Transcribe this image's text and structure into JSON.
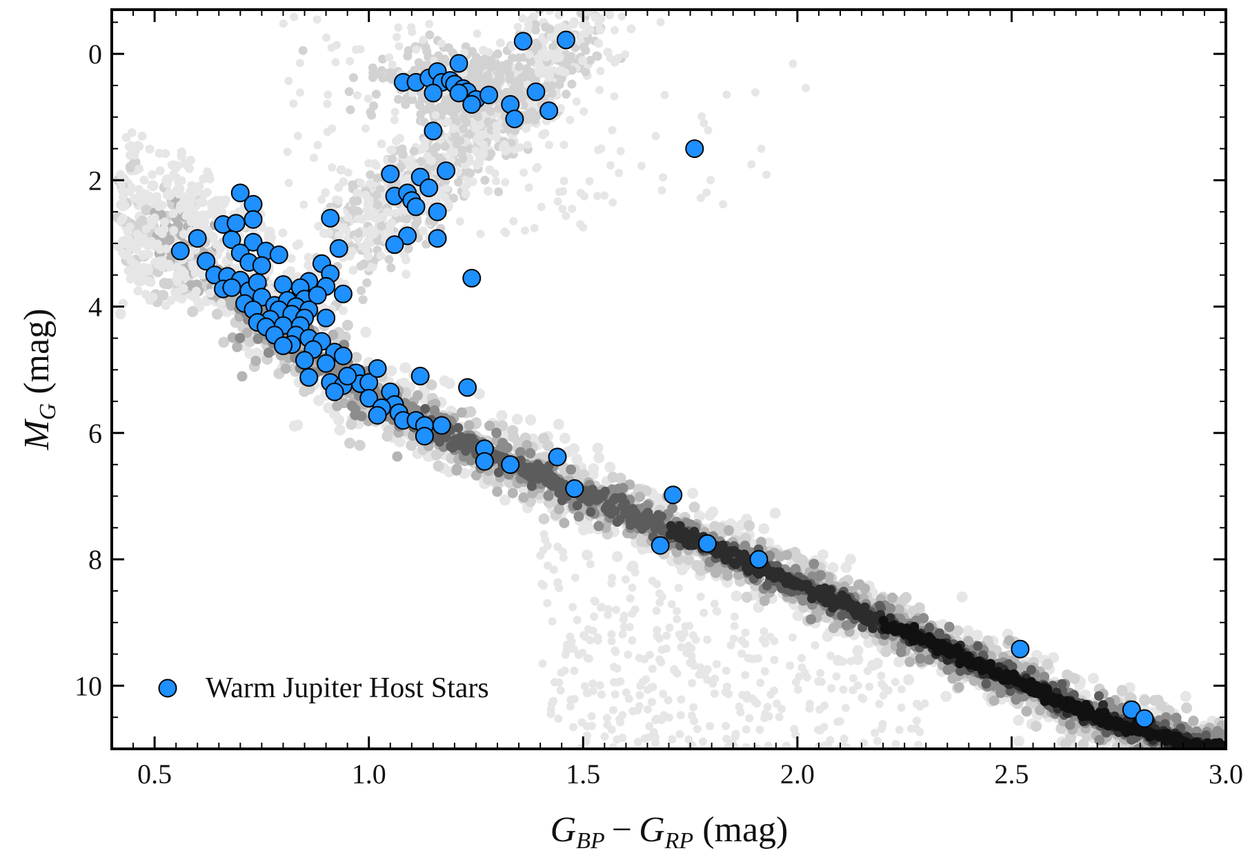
{
  "chart_data": {
    "type": "scatter",
    "xlabel": {
      "main": "G",
      "sub1": "BP",
      "minus": "−",
      "main2": "G",
      "sub2": "RP",
      "unit": " (mag)"
    },
    "ylabel": {
      "main": "M",
      "sub": "G",
      "unit": " (mag)"
    },
    "xlim": [
      0.4,
      3.0
    ],
    "ylim": [
      11.0,
      -0.7
    ],
    "x_ticks": [
      {
        "value": 0.5,
        "label": "0.5"
      },
      {
        "value": 1.0,
        "label": "1.0"
      },
      {
        "value": 1.5,
        "label": "1.5"
      },
      {
        "value": 2.0,
        "label": "2.0"
      },
      {
        "value": 2.5,
        "label": "2.5"
      },
      {
        "value": 3.0,
        "label": "3.0"
      }
    ],
    "y_ticks": [
      {
        "value": 0,
        "label": "0"
      },
      {
        "value": 2,
        "label": "2"
      },
      {
        "value": 4,
        "label": "4"
      },
      {
        "value": 6,
        "label": "6"
      },
      {
        "value": 8,
        "label": "8"
      },
      {
        "value": 10,
        "label": "10"
      }
    ],
    "background_population": {
      "description": "field stars density",
      "main_sequence_ridge": [
        [
          0.45,
          2.6
        ],
        [
          0.6,
          3.3
        ],
        [
          0.8,
          4.4
        ],
        [
          1.0,
          5.4
        ],
        [
          1.2,
          6.1
        ],
        [
          1.5,
          7.0
        ],
        [
          1.8,
          7.8
        ],
        [
          2.1,
          8.7
        ],
        [
          2.4,
          9.6
        ],
        [
          2.7,
          10.5
        ],
        [
          2.95,
          11.0
        ]
      ],
      "red_giant_clump": [
        [
          1.0,
          2.6
        ],
        [
          1.1,
          1.8
        ],
        [
          1.2,
          0.8
        ],
        [
          1.3,
          0.1
        ],
        [
          1.4,
          -0.4
        ]
      ],
      "colors": [
        "#e6e6e6",
        "#d2d2d2",
        "#b4b4b4",
        "#8c8c8c",
        "#5c5c5c",
        "#2c2c2c",
        "#111111"
      ]
    },
    "series": [
      {
        "name": "Warm Jupiter Host Stars",
        "color": "#1e90ff",
        "edge_color": "#000000",
        "points": [
          [
            1.36,
            -0.2
          ],
          [
            1.46,
            -0.22
          ],
          [
            1.21,
            0.15
          ],
          [
            1.08,
            0.45
          ],
          [
            1.11,
            0.45
          ],
          [
            1.14,
            0.38
          ],
          [
            1.16,
            0.28
          ],
          [
            1.17,
            0.45
          ],
          [
            1.19,
            0.42
          ],
          [
            1.2,
            0.48
          ],
          [
            1.22,
            0.55
          ],
          [
            1.23,
            0.6
          ],
          [
            1.15,
            0.62
          ],
          [
            1.21,
            0.62
          ],
          [
            1.25,
            0.72
          ],
          [
            1.24,
            0.8
          ],
          [
            1.28,
            0.65
          ],
          [
            1.33,
            0.8
          ],
          [
            1.34,
            1.03
          ],
          [
            1.39,
            0.6
          ],
          [
            1.42,
            0.9
          ],
          [
            1.15,
            1.22
          ],
          [
            1.76,
            1.5
          ],
          [
            1.05,
            1.9
          ],
          [
            1.12,
            1.95
          ],
          [
            1.18,
            1.85
          ],
          [
            1.14,
            2.12
          ],
          [
            1.06,
            2.25
          ],
          [
            1.09,
            2.2
          ],
          [
            1.1,
            2.32
          ],
          [
            1.11,
            2.42
          ],
          [
            1.16,
            2.5
          ],
          [
            1.09,
            2.88
          ],
          [
            1.16,
            2.92
          ],
          [
            1.06,
            3.02
          ],
          [
            1.24,
            3.55
          ],
          [
            0.7,
            2.2
          ],
          [
            0.73,
            2.38
          ],
          [
            0.73,
            2.62
          ],
          [
            0.66,
            2.7
          ],
          [
            0.69,
            2.68
          ],
          [
            0.6,
            2.92
          ],
          [
            0.68,
            2.94
          ],
          [
            0.73,
            2.98
          ],
          [
            0.56,
            3.12
          ],
          [
            0.91,
            2.6
          ],
          [
            0.93,
            3.08
          ],
          [
            0.7,
            3.15
          ],
          [
            0.76,
            3.12
          ],
          [
            0.79,
            3.18
          ],
          [
            0.62,
            3.28
          ],
          [
            0.72,
            3.3
          ],
          [
            0.75,
            3.35
          ],
          [
            0.89,
            3.32
          ],
          [
            0.64,
            3.5
          ],
          [
            0.67,
            3.52
          ],
          [
            0.7,
            3.58
          ],
          [
            0.91,
            3.48
          ],
          [
            0.86,
            3.6
          ],
          [
            0.66,
            3.72
          ],
          [
            0.68,
            3.7
          ],
          [
            0.72,
            3.75
          ],
          [
            0.74,
            3.62
          ],
          [
            0.8,
            3.65
          ],
          [
            0.84,
            3.7
          ],
          [
            0.9,
            3.68
          ],
          [
            0.94,
            3.8
          ],
          [
            0.75,
            3.85
          ],
          [
            0.71,
            3.95
          ],
          [
            0.78,
            3.98
          ],
          [
            0.81,
            3.9
          ],
          [
            0.85,
            3.88
          ],
          [
            0.88,
            3.82
          ],
          [
            0.73,
            4.05
          ],
          [
            0.79,
            4.05
          ],
          [
            0.83,
            4.0
          ],
          [
            0.86,
            4.05
          ],
          [
            0.82,
            4.12
          ],
          [
            0.77,
            4.2
          ],
          [
            0.74,
            4.25
          ],
          [
            0.85,
            4.18
          ],
          [
            0.9,
            4.18
          ],
          [
            0.76,
            4.32
          ],
          [
            0.8,
            4.3
          ],
          [
            0.84,
            4.3
          ],
          [
            0.78,
            4.45
          ],
          [
            0.83,
            4.45
          ],
          [
            0.86,
            4.5
          ],
          [
            0.89,
            4.55
          ],
          [
            0.82,
            4.6
          ],
          [
            0.8,
            4.62
          ],
          [
            0.87,
            4.68
          ],
          [
            0.92,
            4.72
          ],
          [
            0.94,
            4.78
          ],
          [
            0.85,
            4.85
          ],
          [
            0.9,
            4.9
          ],
          [
            0.97,
            5.05
          ],
          [
            0.86,
            5.12
          ],
          [
            0.91,
            5.2
          ],
          [
            0.94,
            5.25
          ],
          [
            0.98,
            5.22
          ],
          [
            0.92,
            5.35
          ],
          [
            1.0,
            5.2
          ],
          [
            1.02,
            4.98
          ],
          [
            1.12,
            5.1
          ],
          [
            0.95,
            5.1
          ],
          [
            1.05,
            5.35
          ],
          [
            1.0,
            5.45
          ],
          [
            1.06,
            5.55
          ],
          [
            1.03,
            5.6
          ],
          [
            1.02,
            5.72
          ],
          [
            1.07,
            5.68
          ],
          [
            1.08,
            5.8
          ],
          [
            1.11,
            5.8
          ],
          [
            1.13,
            5.88
          ],
          [
            1.13,
            6.05
          ],
          [
            1.17,
            5.88
          ],
          [
            1.23,
            5.28
          ],
          [
            1.27,
            6.25
          ],
          [
            1.27,
            6.45
          ],
          [
            1.33,
            6.5
          ],
          [
            1.44,
            6.38
          ],
          [
            1.48,
            6.88
          ],
          [
            1.71,
            6.98
          ],
          [
            1.68,
            7.78
          ],
          [
            1.79,
            7.75
          ],
          [
            1.91,
            8.0
          ],
          [
            2.52,
            9.42
          ],
          [
            2.78,
            10.38
          ],
          [
            2.81,
            10.52
          ]
        ]
      }
    ],
    "legend": {
      "position": "bottom-left",
      "label": "Warm Jupiter Host Stars"
    }
  }
}
